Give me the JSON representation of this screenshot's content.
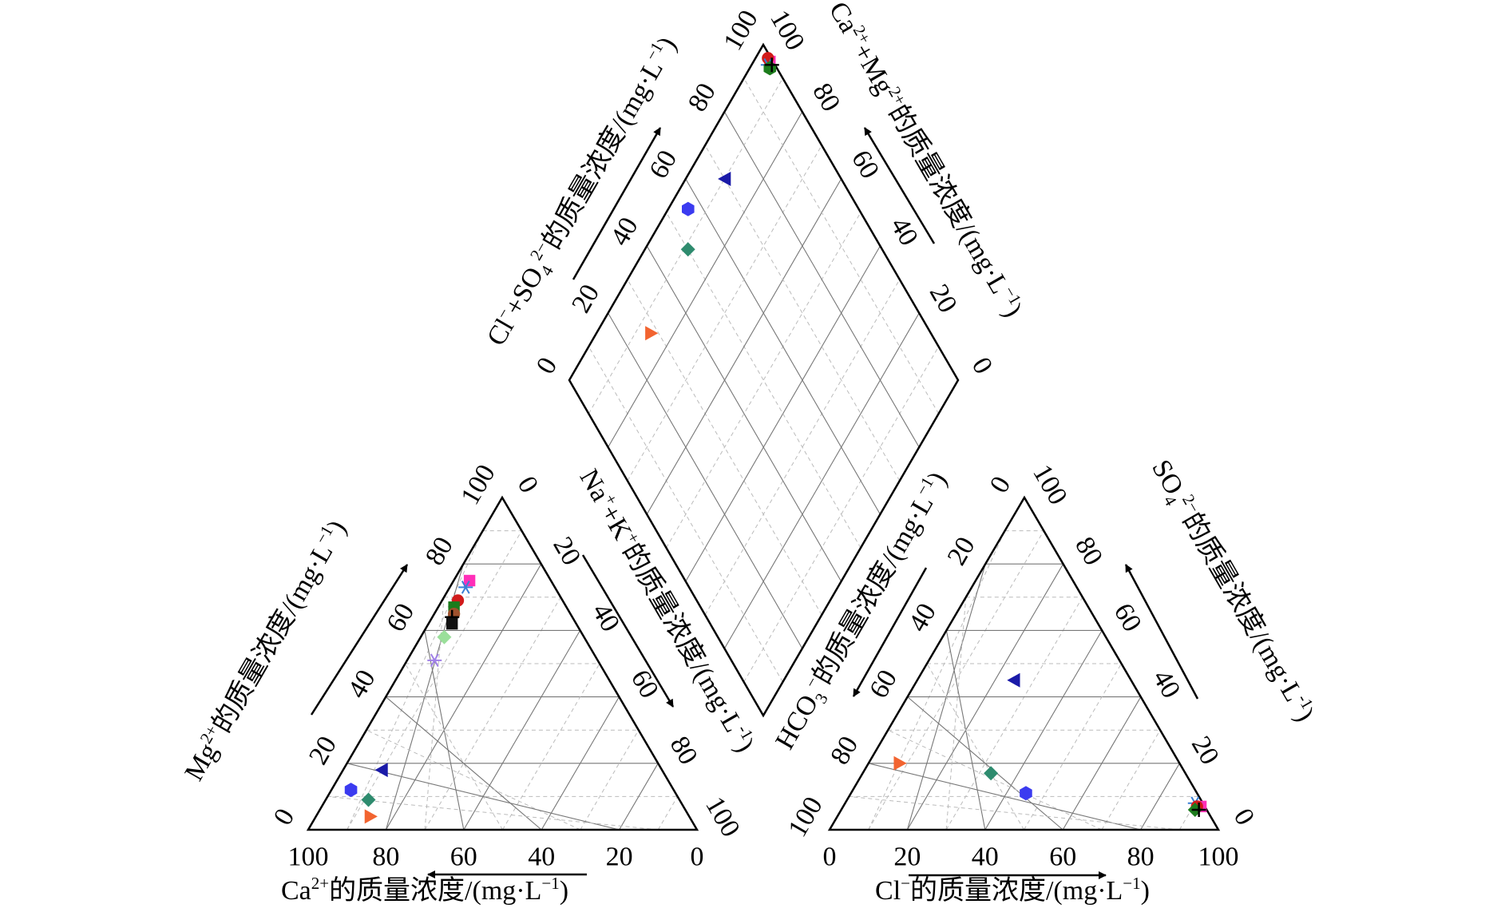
{
  "chart_data": {
    "type": "scatter",
    "chart_kind": "piper-diagram",
    "grid": true,
    "tick_labels": [
      "0",
      "20",
      "40",
      "60",
      "80",
      "100"
    ],
    "cation_triangle": {
      "bottom_axis": {
        "base": "Ca",
        "sup": "2+",
        "tail": "的质量浓度/(mg·L",
        "exp": "−1",
        "close": ")"
      },
      "left_axis": {
        "base": "Mg",
        "sup": "2+",
        "tail": "的质量浓度/(mg·L",
        "exp": "−1",
        "close": ")"
      },
      "right_axis": {
        "base": "Na",
        "sup": "+",
        "mid": "+K",
        "sup2": "+",
        "tail": "的质量浓度/(mg·L",
        "exp": "-1",
        "close": ")"
      },
      "points": [
        {
          "marker": "hexagon",
          "color": "#3b3bf0",
          "Ca": 83,
          "Mg": 12,
          "NaK": 5
        },
        {
          "marker": "triangle-left",
          "color": "#1a1aa8",
          "Ca": 72,
          "Mg": 18,
          "NaK": 10
        },
        {
          "marker": "diamond",
          "color": "#2e8b6e",
          "Ca": 80,
          "Mg": 9,
          "NaK": 11
        },
        {
          "marker": "triangle-right",
          "color": "#f26430",
          "Ca": 82,
          "Mg": 4,
          "NaK": 14
        },
        {
          "marker": "square",
          "color": "#ff2fb8",
          "Ca": 21,
          "Mg": 75,
          "NaK": 4
        },
        {
          "marker": "asterisk",
          "color": "#3a7fd5",
          "Ca": 23,
          "Mg": 73,
          "NaK": 4
        },
        {
          "marker": "circle",
          "color": "#d11a1a",
          "Ca": 27,
          "Mg": 69,
          "NaK": 4
        },
        {
          "marker": "square",
          "color": "#1c7c1c",
          "Ca": 29,
          "Mg": 67,
          "NaK": 4
        },
        {
          "marker": "circle",
          "color": "#a0522d",
          "Ca": 30,
          "Mg": 65,
          "NaK": 5
        },
        {
          "marker": "plus",
          "color": "#000000",
          "Ca": 31,
          "Mg": 64,
          "NaK": 5
        },
        {
          "marker": "square",
          "color": "#111111",
          "Ca": 32,
          "Mg": 62,
          "NaK": 6
        },
        {
          "marker": "diamond",
          "color": "#9adf9a",
          "Ca": 36,
          "Mg": 58,
          "NaK": 6
        },
        {
          "marker": "asterisk",
          "color": "#a080e8",
          "Ca": 42,
          "Mg": 51,
          "NaK": 7
        }
      ]
    },
    "anion_triangle": {
      "bottom_axis": {
        "base": "Cl",
        "sup": "−",
        "tail": "的质量浓度/(mg·L",
        "exp": "−1",
        "close": ")"
      },
      "left_axis": {
        "base": "HCO",
        "sub": "3",
        "sup": "−",
        "tail": "的质量浓度/(mg·L",
        "exp": "−1",
        "close": ")"
      },
      "right_axis": {
        "base": "SO",
        "sub": "4",
        "sup": "2−",
        "tail": "的质量浓度/(mg·L",
        "exp": "-1",
        "close": ")"
      },
      "points": [
        {
          "marker": "hexagon",
          "color": "#3b3bf0",
          "Cl": 45,
          "SO4": 11,
          "HCO3": 44
        },
        {
          "marker": "triangle-left",
          "color": "#1a1aa8",
          "Cl": 25,
          "SO4": 45,
          "HCO3": 30
        },
        {
          "marker": "diamond",
          "color": "#2e8b6e",
          "Cl": 33,
          "SO4": 17,
          "HCO3": 50
        },
        {
          "marker": "triangle-right",
          "color": "#f26430",
          "Cl": 8,
          "SO4": 20,
          "HCO3": 72
        },
        {
          "marker": "square",
          "color": "#ff2fb8",
          "Cl": 92,
          "SO4": 7,
          "HCO3": 1
        },
        {
          "marker": "asterisk",
          "color": "#3a7fd5",
          "Cl": 90,
          "SO4": 8,
          "HCO3": 2
        },
        {
          "marker": "circle",
          "color": "#d11a1a",
          "Cl": 91,
          "SO4": 7,
          "HCO3": 2
        },
        {
          "marker": "diamond",
          "color": "#1c7c1c",
          "Cl": 91,
          "SO4": 6,
          "HCO3": 3
        },
        {
          "marker": "plus",
          "color": "#000000",
          "Cl": 92,
          "SO4": 6,
          "HCO3": 2
        }
      ]
    },
    "diamond": {
      "left_axis": {
        "base": "Cl",
        "sup": "−",
        "mid": "+SO",
        "sub": "4",
        "sup2": "2−",
        "tail": "的质量浓度/(mg·L",
        "exp": "−1",
        "close": ")"
      },
      "right_axis": {
        "base": "Ca",
        "sup": "2+",
        "mid": "+Mg",
        "sup2": "2+",
        "tail": "的质量浓度/(mg·L",
        "exp": "−1",
        "close": ")"
      },
      "points": [
        {
          "marker": "hexagon",
          "color": "#3b3bf0",
          "ClSO4": 56,
          "CaMg": 95
        },
        {
          "marker": "triangle-left",
          "color": "#1a1aa8",
          "ClSO4": 70,
          "CaMg": 90
        },
        {
          "marker": "diamond",
          "color": "#2e8b6e",
          "ClSO4": 50,
          "CaMg": 89
        },
        {
          "marker": "triangle-right",
          "color": "#f26430",
          "ClSO4": 28,
          "CaMg": 86
        },
        {
          "marker": "square",
          "color": "#ff2fb8",
          "ClSO4": 99,
          "CaMg": 96
        },
        {
          "marker": "circle",
          "color": "#d11a1a",
          "ClSO4": 99,
          "CaMg": 97
        },
        {
          "marker": "asterisk",
          "color": "#3a7fd5",
          "ClSO4": 98,
          "CaMg": 96
        },
        {
          "marker": "hexagon",
          "color": "#1c7c1c",
          "ClSO4": 98,
          "CaMg": 95
        },
        {
          "marker": "plus",
          "color": "#000000",
          "ClSO4": 99,
          "CaMg": 95
        }
      ]
    }
  }
}
